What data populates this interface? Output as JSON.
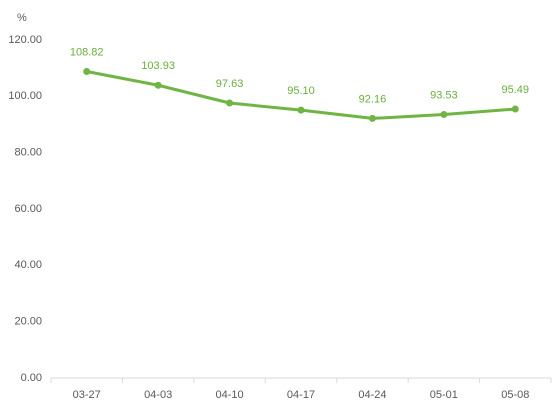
{
  "chart_data": {
    "type": "line",
    "y_unit": "%",
    "categories": [
      "03-27",
      "04-03",
      "04-10",
      "04-17",
      "04-24",
      "05-01",
      "05-08"
    ],
    "values": [
      108.82,
      103.93,
      97.63,
      95.1,
      92.16,
      93.53,
      95.49
    ],
    "value_labels": [
      "108.82",
      "103.93",
      "97.63",
      "95.10",
      "92.16",
      "93.53",
      "95.49"
    ],
    "color": "#70b443",
    "ylim": [
      0,
      120
    ],
    "yticks": [
      {
        "value": 0,
        "label": "0.00"
      },
      {
        "value": 20,
        "label": "20.00"
      },
      {
        "value": 40,
        "label": "40.00"
      },
      {
        "value": 60,
        "label": "60.00"
      },
      {
        "value": 80,
        "label": "80.00"
      },
      {
        "value": 100,
        "label": "100.00"
      },
      {
        "value": 120,
        "label": "120.00"
      }
    ]
  }
}
